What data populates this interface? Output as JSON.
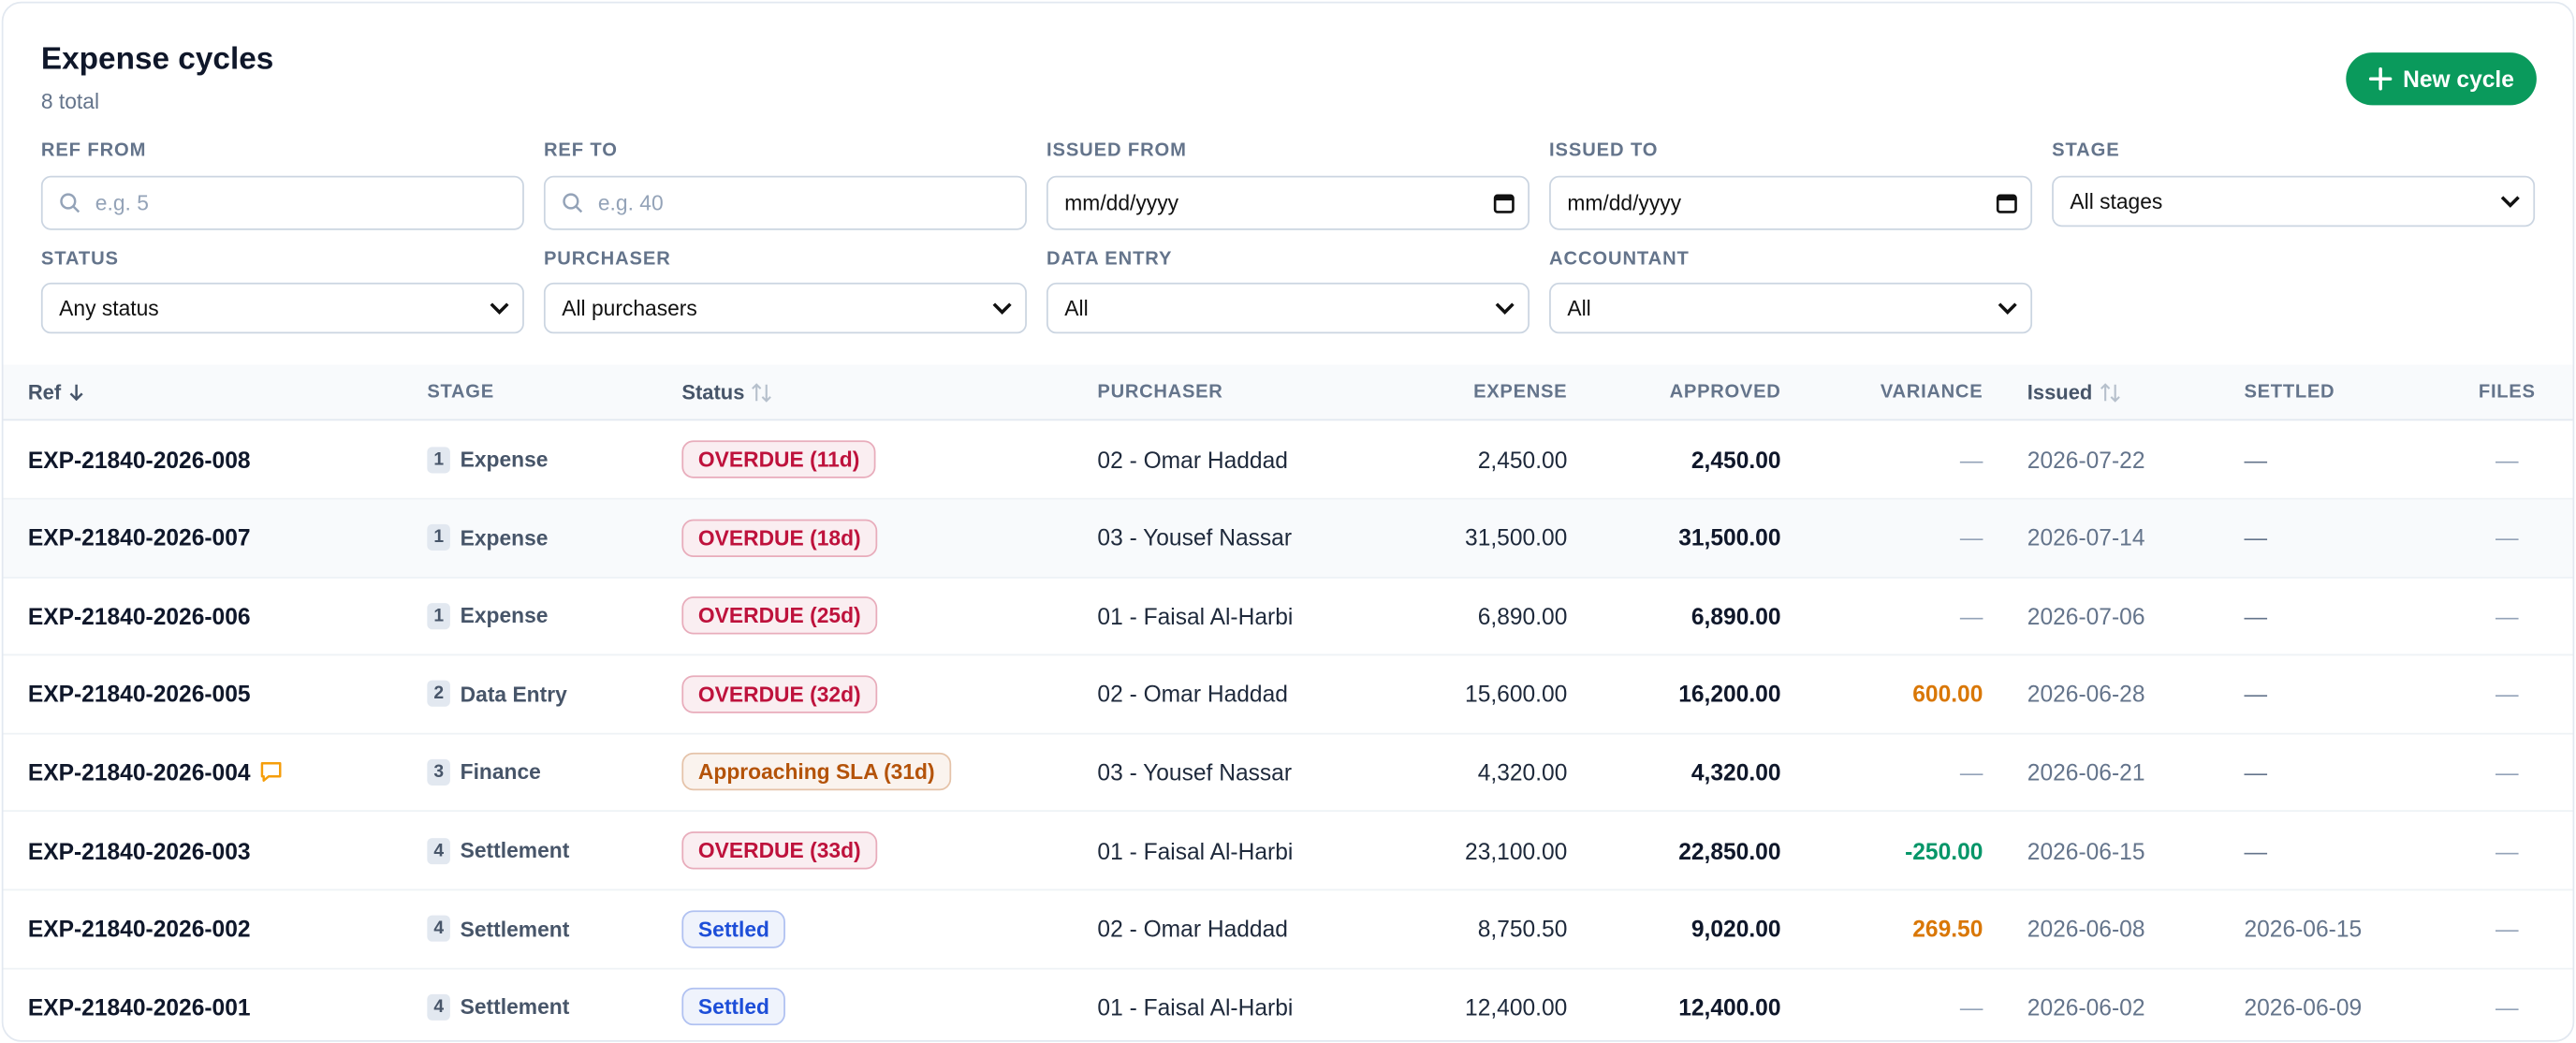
{
  "header": {
    "title": "Expense cycles",
    "subtitle": "8 total",
    "button": "New cycle"
  },
  "filters": [
    {
      "label": "REF FROM",
      "placeholder": "e.g. 5",
      "kind": "search"
    },
    {
      "label": "REF TO",
      "placeholder": "e.g. 40",
      "kind": "search"
    },
    {
      "label": "ISSUED FROM",
      "value": "mm/dd/yyyy",
      "kind": "date"
    },
    {
      "label": "ISSUED TO",
      "value": "mm/dd/yyyy",
      "kind": "date"
    },
    {
      "label": "STAGE",
      "value": "All stages",
      "kind": "select"
    },
    {
      "label": "STATUS",
      "value": "Any status",
      "kind": "select"
    },
    {
      "label": "PURCHASER",
      "value": "All purchasers",
      "kind": "select"
    },
    {
      "label": "DATA ENTRY",
      "value": "All",
      "kind": "select"
    },
    {
      "label": "ACCOUNTANT",
      "value": "All",
      "kind": "select"
    }
  ],
  "table": {
    "columns": [
      {
        "label": "Ref",
        "sort": "desc"
      },
      {
        "label": "STAGE"
      },
      {
        "label": "Status",
        "sort": "none"
      },
      {
        "label": "PURCHASER"
      },
      {
        "label": "EXPENSE",
        "align": "right"
      },
      {
        "label": "APPROVED",
        "align": "right"
      },
      {
        "label": "VARIANCE",
        "align": "right"
      },
      {
        "label": "Issued",
        "sort": "none"
      },
      {
        "label": "SETTLED"
      },
      {
        "label": "FILES",
        "align": "center"
      }
    ],
    "rows": [
      {
        "ref": "EXP-21840-2026-008",
        "stage_no": "1",
        "stage": "Expense",
        "status": "OVERDUE (11d)",
        "status_color": "#be123c",
        "purchaser": "02 - Omar Haddad",
        "expense": "2,450.00",
        "approved": "2,450.00",
        "variance": "—",
        "issued": "2026-07-22",
        "settled": "—",
        "files": "—"
      },
      {
        "ref": "EXP-21840-2026-007",
        "stage_no": "1",
        "stage": "Expense",
        "status": "OVERDUE (18d)",
        "status_color": "#be123c",
        "purchaser": "03 - Yousef Nassar",
        "expense": "31,500.00",
        "approved": "31,500.00",
        "variance": "—",
        "issued": "2026-07-14",
        "settled": "—",
        "files": "—",
        "shaded": true
      },
      {
        "ref": "EXP-21840-2026-006",
        "stage_no": "1",
        "stage": "Expense",
        "status": "OVERDUE (25d)",
        "status_color": "#be123c",
        "purchaser": "01 - Faisal Al-Harbi",
        "expense": "6,890.00",
        "approved": "6,890.00",
        "variance": "—",
        "issued": "2026-07-06",
        "settled": "—",
        "files": "—"
      },
      {
        "ref": "EXP-21840-2026-005",
        "stage_no": "2",
        "stage": "Data Entry",
        "status": "OVERDUE (32d)",
        "status_color": "#be123c",
        "purchaser": "02 - Omar Haddad",
        "expense": "15,600.00",
        "approved": "16,200.00",
        "variance": "600.00",
        "variance_color": "#d97706",
        "issued": "2026-06-28",
        "settled": "—",
        "files": "—"
      },
      {
        "ref": "EXP-21840-2026-004",
        "comment_icon": true,
        "stage_no": "3",
        "stage": "Finance",
        "status": "Approaching SLA (31d)",
        "status_color": "#b45309",
        "purchaser": "03 - Yousef Nassar",
        "expense": "4,320.00",
        "approved": "4,320.00",
        "variance": "—",
        "issued": "2026-06-21",
        "settled": "—",
        "files": "—"
      },
      {
        "ref": "EXP-21840-2026-003",
        "stage_no": "4",
        "stage": "Settlement",
        "status": "OVERDUE (33d)",
        "status_color": "#be123c",
        "purchaser": "01 - Faisal Al-Harbi",
        "expense": "23,100.00",
        "approved": "22,850.00",
        "variance": "-250.00",
        "variance_color": "#059669",
        "issued": "2026-06-15",
        "settled": "—",
        "files": "—"
      },
      {
        "ref": "EXP-21840-2026-002",
        "stage_no": "4",
        "stage": "Settlement",
        "status": "Settled",
        "status_color": "#1d4ed8",
        "purchaser": "02 - Omar Haddad",
        "expense": "8,750.50",
        "approved": "9,020.00",
        "variance": "269.50",
        "variance_color": "#d97706",
        "issued": "2026-06-08",
        "settled": "2026-06-15",
        "files": "—"
      },
      {
        "ref": "EXP-21840-2026-001",
        "stage_no": "4",
        "stage": "Settlement",
        "status": "Settled",
        "status_color": "#1d4ed8",
        "purchaser": "01 - Faisal Al-Harbi",
        "expense": "12,400.00",
        "approved": "12,400.00",
        "variance": "—",
        "issued": "2026-06-02",
        "settled": "2026-06-09",
        "files": "—"
      }
    ]
  }
}
